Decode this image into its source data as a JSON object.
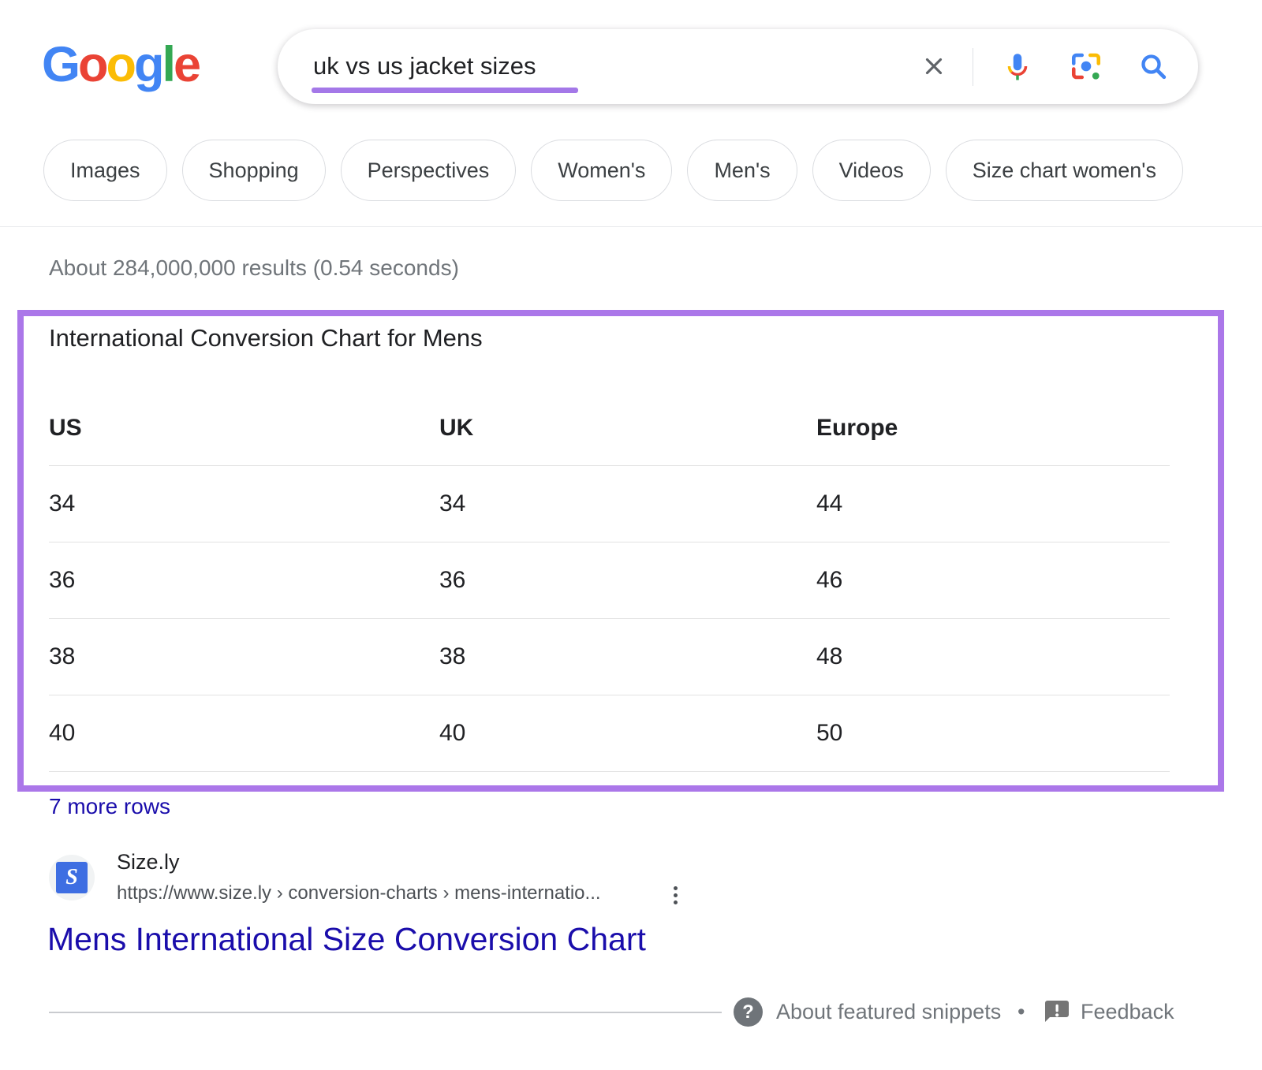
{
  "logo": {
    "letters": [
      {
        "ch": "G",
        "color": "#4285F4"
      },
      {
        "ch": "o",
        "color": "#EA4335"
      },
      {
        "ch": "o",
        "color": "#FBBC05"
      },
      {
        "ch": "g",
        "color": "#4285F4"
      },
      {
        "ch": "l",
        "color": "#34A853"
      },
      {
        "ch": "e",
        "color": "#EA4335"
      }
    ]
  },
  "search_bar": {
    "query": "uk vs us jacket sizes"
  },
  "tabs": [
    "Images",
    "Shopping",
    "Perspectives",
    "Women's",
    "Men's",
    "Videos",
    "Size chart women's"
  ],
  "results_stats": "About 284,000,000 results (0.54 seconds)",
  "featured_snippet": {
    "heading": "International Conversion Chart for Mens",
    "table": {
      "headers": [
        "US",
        "UK",
        "Europe"
      ],
      "rows": [
        [
          "34",
          "34",
          "44"
        ],
        [
          "36",
          "36",
          "46"
        ],
        [
          "38",
          "38",
          "48"
        ],
        [
          "40",
          "40",
          "50"
        ]
      ]
    },
    "more_rows_link": "7 more rows",
    "source": {
      "site_name": "Size.ly",
      "favicon_letter": "S",
      "url_breadcrumb": "https://www.size.ly › conversion-charts › mens-internatio..."
    },
    "result_title": "Mens International Size Conversion Chart"
  },
  "footer": {
    "about_link": "About featured snippets",
    "separator": "•",
    "feedback_link": "Feedback",
    "help_glyph": "?"
  },
  "colors": {
    "annotation_purple": "#ab77e9",
    "underline_purple": "#a478e8",
    "link_blue": "#1a0dab",
    "stats_gray": "#70757a"
  }
}
